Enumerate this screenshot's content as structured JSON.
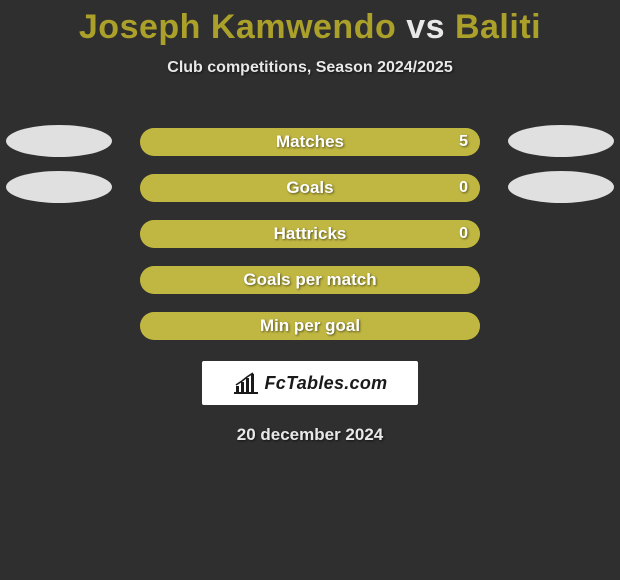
{
  "colors": {
    "background": "#2f2f2f",
    "title_primary": "#aaa02a",
    "title_vs": "#e8e8e8",
    "subtitle": "#e8e8e8",
    "ellipse": "#e0e0e0",
    "bar_track": "#aaa02a",
    "bar_fill": "#c0b742",
    "bar_text": "#ffffff",
    "logo_bg": "#ffffff",
    "logo_text": "#1a1a1a",
    "date_text": "#e8e8e8"
  },
  "title": {
    "player1": "Joseph Kamwendo",
    "vs": "vs",
    "player2": "Baliti"
  },
  "subtitle": "Club competitions, Season 2024/2025",
  "stats": [
    {
      "label": "Matches",
      "value": "5",
      "fill_pct": 100,
      "show_value": true,
      "left_ellipse": true,
      "right_ellipse": true
    },
    {
      "label": "Goals",
      "value": "0",
      "fill_pct": 100,
      "show_value": true,
      "left_ellipse": true,
      "right_ellipse": true
    },
    {
      "label": "Hattricks",
      "value": "0",
      "fill_pct": 100,
      "show_value": true,
      "left_ellipse": false,
      "right_ellipse": false
    },
    {
      "label": "Goals per match",
      "value": "",
      "fill_pct": 100,
      "show_value": false,
      "left_ellipse": false,
      "right_ellipse": false
    },
    {
      "label": "Min per goal",
      "value": "",
      "fill_pct": 100,
      "show_value": false,
      "left_ellipse": false,
      "right_ellipse": false
    }
  ],
  "logo": {
    "text": "FcTables.com"
  },
  "date": "20 december 2024"
}
